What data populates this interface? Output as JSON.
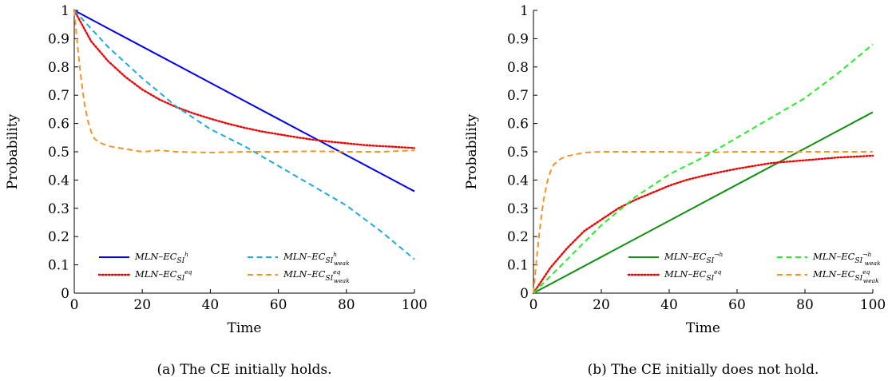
{
  "chart_data": [
    {
      "type": "line",
      "caption": "(a) The CE initially holds.",
      "xlabel": "Time",
      "ylabel": "Probability",
      "xlim": [
        0,
        100
      ],
      "ylim": [
        0,
        1
      ],
      "xticks": [
        0,
        20,
        40,
        60,
        80,
        100
      ],
      "yticks": [
        0,
        0.1,
        0.2,
        0.3,
        0.4,
        0.5,
        0.6,
        0.7,
        0.8,
        0.9,
        1
      ],
      "legend_position": "bottom",
      "series": [
        {
          "name": "MLN–EC_SI^h",
          "legend": {
            "base": "MLN–EC",
            "sub": "SI",
            "supsup": "h",
            "subsub": ""
          },
          "color": "#0000ee",
          "style": "solid",
          "x": [
            0,
            20,
            40,
            60,
            80,
            100
          ],
          "y": [
            1.0,
            0.872,
            0.744,
            0.616,
            0.488,
            0.36
          ]
        },
        {
          "name": "MLN–EC_SI^eq",
          "legend": {
            "base": "MLN–EC",
            "sub": "SI",
            "supsup": "eq",
            "subsub": ""
          },
          "color": "#ee0000",
          "style": "dotted",
          "x": [
            0,
            5,
            10,
            15,
            20,
            25,
            30,
            35,
            40,
            45,
            50,
            55,
            60,
            65,
            70,
            75,
            80,
            85,
            90,
            95,
            100
          ],
          "y": [
            1.0,
            0.89,
            0.82,
            0.765,
            0.72,
            0.685,
            0.658,
            0.636,
            0.617,
            0.6,
            0.585,
            0.572,
            0.562,
            0.552,
            0.543,
            0.536,
            0.53,
            0.524,
            0.52,
            0.517,
            0.513
          ]
        },
        {
          "name": "MLN–EC_SI^h_weak",
          "legend": {
            "base": "MLN–EC",
            "sub": "SI",
            "supsup": "h",
            "subsub": "weak"
          },
          "color": "#1aaae4",
          "style": "dashed",
          "x": [
            0,
            10,
            20,
            30,
            40,
            50,
            60,
            70,
            80,
            90,
            100
          ],
          "y": [
            1.0,
            0.87,
            0.76,
            0.66,
            0.58,
            0.52,
            0.45,
            0.38,
            0.31,
            0.22,
            0.12
          ]
        },
        {
          "name": "MLN–EC_SI^eq_weak",
          "legend": {
            "base": "MLN–EC",
            "sub": "SI",
            "supsup": "eq",
            "subsub": "weak"
          },
          "color": "#f79421",
          "style": "dashed",
          "x": [
            0,
            1,
            2,
            3,
            4,
            5,
            6,
            8,
            10,
            15,
            20,
            25,
            30,
            40,
            50,
            60,
            70,
            80,
            90,
            100
          ],
          "y": [
            1.0,
            0.87,
            0.76,
            0.67,
            0.61,
            0.57,
            0.545,
            0.53,
            0.52,
            0.51,
            0.5,
            0.505,
            0.5,
            0.497,
            0.5,
            0.5,
            0.502,
            0.5,
            0.5,
            0.505
          ]
        }
      ]
    },
    {
      "type": "line",
      "caption": "(b) The CE initially does not hold.",
      "xlabel": "Time",
      "ylabel": "Probability",
      "xlim": [
        0,
        100
      ],
      "ylim": [
        0,
        1
      ],
      "xticks": [
        0,
        20,
        40,
        60,
        80,
        100
      ],
      "yticks": [
        0,
        0.1,
        0.2,
        0.3,
        0.4,
        0.5,
        0.6,
        0.7,
        0.8,
        0.9,
        1
      ],
      "legend_position": "bottom-right",
      "series": [
        {
          "name": "MLN–EC_SI^¬h",
          "legend": {
            "base": "MLN–EC",
            "sub": "SI",
            "supsup": "¬h",
            "subsub": ""
          },
          "color": "#109010",
          "style": "solid",
          "x": [
            0,
            20,
            40,
            60,
            80,
            100
          ],
          "y": [
            0.0,
            0.128,
            0.256,
            0.384,
            0.512,
            0.64
          ]
        },
        {
          "name": "MLN–EC_SI^eq",
          "legend": {
            "base": "MLN–EC",
            "sub": "SI",
            "supsup": "eq",
            "subsub": ""
          },
          "color": "#ee0000",
          "style": "dotted",
          "x": [
            0,
            5,
            10,
            15,
            20,
            25,
            30,
            35,
            40,
            45,
            50,
            55,
            60,
            65,
            70,
            75,
            80,
            85,
            90,
            95,
            100
          ],
          "y": [
            0.0,
            0.09,
            0.16,
            0.22,
            0.26,
            0.3,
            0.33,
            0.355,
            0.38,
            0.4,
            0.415,
            0.428,
            0.44,
            0.45,
            0.46,
            0.465,
            0.47,
            0.475,
            0.48,
            0.483,
            0.486
          ]
        },
        {
          "name": "MLN–EC_SI^¬h_weak",
          "legend": {
            "base": "MLN–EC",
            "sub": "SI",
            "supsup": "¬h",
            "subsub": "weak"
          },
          "color": "#22ee22",
          "style": "dashed",
          "x": [
            0,
            10,
            20,
            30,
            40,
            50,
            60,
            70,
            80,
            90,
            100
          ],
          "y": [
            0.0,
            0.12,
            0.24,
            0.34,
            0.42,
            0.48,
            0.55,
            0.62,
            0.69,
            0.78,
            0.88
          ]
        },
        {
          "name": "MLN–EC_SI^eq_weak",
          "legend": {
            "base": "MLN–EC",
            "sub": "SI",
            "supsup": "eq",
            "subsub": "weak"
          },
          "color": "#f79421",
          "style": "dashed",
          "x": [
            0,
            1,
            2,
            3,
            4,
            5,
            6,
            8,
            10,
            15,
            20,
            25,
            30,
            40,
            50,
            60,
            70,
            80,
            90,
            100
          ],
          "y": [
            0.0,
            0.13,
            0.24,
            0.33,
            0.39,
            0.43,
            0.455,
            0.475,
            0.485,
            0.497,
            0.5,
            0.5,
            0.5,
            0.5,
            0.497,
            0.5,
            0.5,
            0.5,
            0.5,
            0.5
          ]
        }
      ]
    }
  ]
}
